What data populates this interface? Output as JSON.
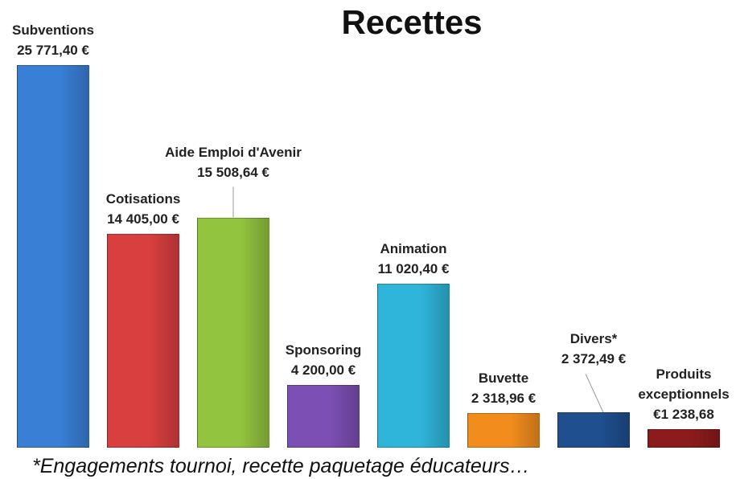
{
  "chart_data": {
    "type": "bar",
    "title": "Recettes",
    "categories": [
      "Subventions",
      "Cotisations",
      "Aide Emploi d'Avenir",
      "Sponsoring",
      "Animation",
      "Buvette",
      "Divers*",
      "Produits exceptionnels"
    ],
    "values": [
      25771.4,
      14405.0,
      15508.64,
      4200.0,
      11020.4,
      2318.96,
      2372.49,
      1238.68
    ],
    "value_labels": [
      "25 771,40 €",
      "14 405,00 €",
      "15 508,64 €",
      "4 200,00 €",
      "11 020,40 €",
      "2 318,96 €",
      "2 372,49 €",
      "€1 238,68"
    ],
    "colors": [
      "#3a7fd6",
      "#d93f3f",
      "#92c43f",
      "#7b4fb3",
      "#2fb5d9",
      "#f28d1d",
      "#1f4f8f",
      "#8c1b1b"
    ],
    "annotation": "*Engagements tournoi, recette paquetage éducateurs…"
  }
}
